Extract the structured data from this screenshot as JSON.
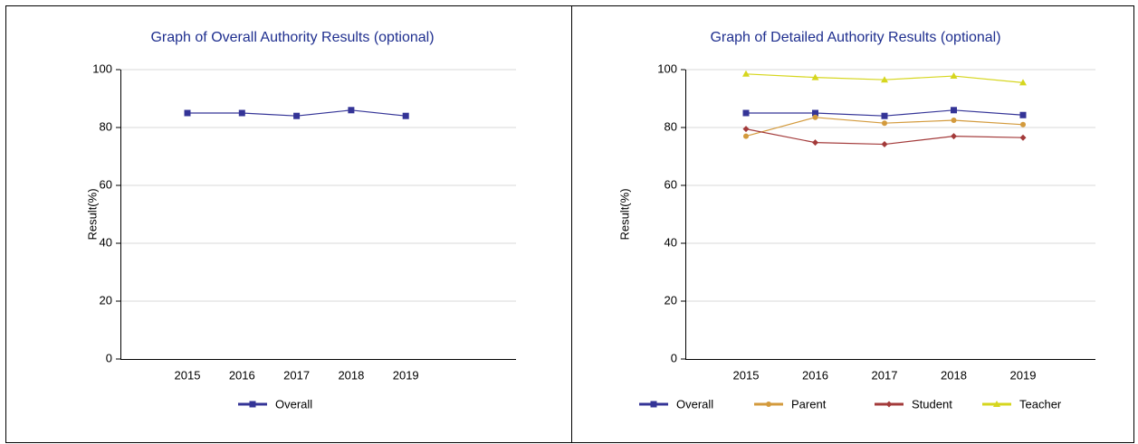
{
  "chart_data": [
    {
      "type": "line",
      "title": "Graph of Overall Authority Results (optional)",
      "y_label": "Result(%)",
      "categories": [
        "2015",
        "2016",
        "2017",
        "2018",
        "2019"
      ],
      "series": [
        {
          "name": "Overall",
          "color": "#343497",
          "marker": "square",
          "values": [
            85,
            85,
            84,
            86,
            84
          ]
        }
      ],
      "ylim": [
        0,
        100
      ],
      "yticks": [
        0,
        20,
        40,
        60,
        80,
        100
      ],
      "grid": true,
      "legend": "bottom"
    },
    {
      "type": "line",
      "title": "Graph of Detailed Authority Results (optional)",
      "y_label": "Result(%)",
      "categories": [
        "2015",
        "2016",
        "2017",
        "2018",
        "2019"
      ],
      "series": [
        {
          "name": "Overall",
          "color": "#343497",
          "marker": "square",
          "values": [
            85,
            85,
            84,
            86,
            84.3
          ]
        },
        {
          "name": "Parent",
          "color": "#d39a3c",
          "marker": "circle",
          "values": [
            77,
            83.5,
            81.5,
            82.5,
            81
          ]
        },
        {
          "name": "Student",
          "color": "#a33a3a",
          "marker": "diamond",
          "values": [
            79.5,
            74.8,
            74.2,
            77,
            76.5
          ]
        },
        {
          "name": "Teacher",
          "color": "#d6d61e",
          "marker": "triangle",
          "values": [
            98.5,
            97.3,
            96.5,
            97.8,
            95.5
          ]
        }
      ],
      "ylim": [
        0,
        100
      ],
      "yticks": [
        0,
        20,
        40,
        60,
        80,
        100
      ],
      "grid": true,
      "legend": "bottom"
    }
  ]
}
